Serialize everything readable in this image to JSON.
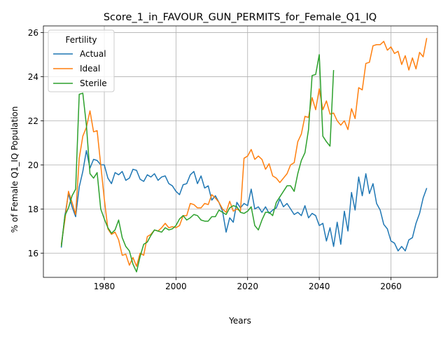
{
  "chart_data": {
    "type": "line",
    "title": "Score_1_in_FAVOUR_GUN_PERMITS_for_Female_Q1_IQ",
    "xlabel": "Years",
    "ylabel": "% of Female Q1_IQ Population",
    "xlim": [
      1963,
      2073
    ],
    "ylim": [
      14.9,
      26.3
    ],
    "xticks": [
      1980,
      2000,
      2020,
      2040,
      2060
    ],
    "yticks": [
      16,
      18,
      20,
      22,
      24,
      26
    ],
    "grid": true,
    "legend": {
      "title": "Fertility",
      "placement": "top-left"
    },
    "series": [
      {
        "name": "Actual",
        "color": "#1f77b4",
        "x": [
          1968,
          1969,
          1970,
          1971,
          1972,
          1973,
          1974,
          1975,
          1976,
          1977,
          1978,
          1979,
          1980,
          1981,
          1982,
          1983,
          1984,
          1985,
          1986,
          1987,
          1988,
          1989,
          1990,
          1991,
          1992,
          1993,
          1994,
          1995,
          1996,
          1997,
          1998,
          1999,
          2000,
          2001,
          2002,
          2003,
          2004,
          2005,
          2006,
          2007,
          2008,
          2009,
          2010,
          2011,
          2012,
          2013,
          2014,
          2015,
          2016,
          2017,
          2018,
          2019,
          2020,
          2021,
          2022,
          2023,
          2024,
          2025,
          2026,
          2027,
          2028,
          2029,
          2030,
          2031,
          2032,
          2033,
          2034,
          2035,
          2036,
          2037,
          2038,
          2039,
          2040,
          2041,
          2042,
          2043,
          2044,
          2045,
          2046,
          2047,
          2048,
          2049,
          2050,
          2051,
          2052,
          2053,
          2054,
          2055,
          2056,
          2057,
          2058,
          2059,
          2060,
          2061,
          2062,
          2063,
          2064,
          2065,
          2066,
          2067,
          2068,
          2069,
          2070
        ],
        "values": [
          16.25,
          17.7,
          18.7,
          18.1,
          17.65,
          19.0,
          19.7,
          20.65,
          19.85,
          20.25,
          20.2,
          20.0,
          20.0,
          19.4,
          19.15,
          19.65,
          19.55,
          19.7,
          19.3,
          19.4,
          19.8,
          19.75,
          19.35,
          19.25,
          19.55,
          19.45,
          19.6,
          19.3,
          19.45,
          19.5,
          19.15,
          19.05,
          18.8,
          18.65,
          19.1,
          19.15,
          19.55,
          19.7,
          19.15,
          19.5,
          18.95,
          19.05,
          18.4,
          18.6,
          18.3,
          17.9,
          16.95,
          17.6,
          17.4,
          18.3,
          18.05,
          18.25,
          18.15,
          18.9,
          18.0,
          18.1,
          17.85,
          18.1,
          17.8,
          17.95,
          18.05,
          18.45,
          18.1,
          18.25,
          18.0,
          17.75,
          17.85,
          17.7,
          18.15,
          17.6,
          17.8,
          17.7,
          17.25,
          17.35,
          16.55,
          17.15,
          16.3,
          17.4,
          16.4,
          17.9,
          17.0,
          18.75,
          17.95,
          19.45,
          18.6,
          19.6,
          18.7,
          19.15,
          18.25,
          17.95,
          17.3,
          17.1,
          16.55,
          16.45,
          16.1,
          16.3,
          16.1,
          16.6,
          16.7,
          17.35,
          17.8,
          18.5,
          18.95
        ]
      },
      {
        "name": "Ideal",
        "color": "#ff7f0e",
        "x": [
          1968,
          1969,
          1970,
          1971,
          1972,
          1973,
          1974,
          1975,
          1976,
          1977,
          1978,
          1979,
          1980,
          1981,
          1982,
          1983,
          1984,
          1985,
          1986,
          1987,
          1988,
          1989,
          1990,
          1991,
          1992,
          1993,
          1994,
          1995,
          1996,
          1997,
          1998,
          1999,
          2000,
          2001,
          2002,
          2003,
          2004,
          2005,
          2006,
          2007,
          2008,
          2009,
          2010,
          2011,
          2012,
          2013,
          2014,
          2015,
          2016,
          2017,
          2018,
          2019,
          2020,
          2021,
          2022,
          2023,
          2024,
          2025,
          2026,
          2027,
          2028,
          2029,
          2030,
          2031,
          2032,
          2033,
          2034,
          2035,
          2036,
          2037,
          2038,
          2039,
          2040,
          2041,
          2042,
          2043,
          2044,
          2045,
          2046,
          2047,
          2048,
          2049,
          2050,
          2051,
          2052,
          2053,
          2054,
          2055,
          2056,
          2057,
          2058,
          2059,
          2060,
          2061,
          2062,
          2063,
          2064,
          2065,
          2066,
          2067,
          2068,
          2069,
          2070
        ],
        "values": [
          16.4,
          17.5,
          18.8,
          18.3,
          17.75,
          20.3,
          21.3,
          21.7,
          22.45,
          21.5,
          21.55,
          20.0,
          18.45,
          17.1,
          16.85,
          16.95,
          16.6,
          15.9,
          15.95,
          15.45,
          15.8,
          15.4,
          16.0,
          15.9,
          16.75,
          16.85,
          17.05,
          17.0,
          17.15,
          17.35,
          17.15,
          17.2,
          17.15,
          17.25,
          17.7,
          17.7,
          18.25,
          18.2,
          18.05,
          18.05,
          18.25,
          18.2,
          18.65,
          18.5,
          18.3,
          18.0,
          17.85,
          18.35,
          17.9,
          18.0,
          17.9,
          20.3,
          20.4,
          20.7,
          20.25,
          20.4,
          20.25,
          19.8,
          20.05,
          19.5,
          19.4,
          19.2,
          19.4,
          19.6,
          20.0,
          20.1,
          21.05,
          21.4,
          22.2,
          22.15,
          23.05,
          22.5,
          23.45,
          22.5,
          22.9,
          22.3,
          22.35,
          22.0,
          21.8,
          22.0,
          21.6,
          22.55,
          22.1,
          23.5,
          23.4,
          24.6,
          24.65,
          25.4,
          25.45,
          25.45,
          25.6,
          25.2,
          25.35,
          25.05,
          25.15,
          24.55,
          24.95,
          24.3,
          24.85,
          24.35,
          25.1,
          24.9,
          25.75
        ]
      },
      {
        "name": "Sterile",
        "color": "#2ca02c",
        "x": [
          1968,
          1969,
          1970,
          1971,
          1972,
          1973,
          1974,
          1975,
          1976,
          1977,
          1978,
          1979,
          1980,
          1981,
          1982,
          1983,
          1984,
          1985,
          1986,
          1987,
          1988,
          1989,
          1990,
          1991,
          1992,
          1993,
          1994,
          1995,
          1996,
          1997,
          1998,
          1999,
          2000,
          2001,
          2002,
          2003,
          2004,
          2005,
          2006,
          2007,
          2008,
          2009,
          2010,
          2011,
          2012,
          2013,
          2014,
          2015,
          2016,
          2017,
          2018,
          2019,
          2020,
          2021,
          2022,
          2023,
          2024,
          2025,
          2026,
          2027,
          2028,
          2029,
          2030,
          2031,
          2032,
          2033,
          2034,
          2035,
          2036,
          2037,
          2038,
          2039,
          2040,
          2041,
          2042,
          2043,
          2044
        ],
        "values": [
          16.3,
          17.7,
          18.05,
          18.6,
          18.9,
          23.2,
          23.25,
          21.8,
          19.6,
          19.4,
          19.65,
          18.0,
          17.55,
          17.15,
          16.9,
          17.05,
          17.5,
          16.7,
          16.3,
          16.1,
          15.5,
          15.15,
          15.85,
          16.4,
          16.5,
          16.8,
          17.05,
          17.0,
          16.95,
          17.15,
          17.05,
          17.1,
          17.25,
          17.55,
          17.7,
          17.5,
          17.6,
          17.75,
          17.7,
          17.5,
          17.45,
          17.45,
          17.65,
          17.65,
          17.95,
          17.85,
          17.75,
          18.05,
          18.15,
          18.1,
          17.85,
          17.8,
          17.9,
          18.1,
          17.25,
          17.05,
          17.5,
          17.85,
          17.85,
          17.7,
          18.3,
          18.55,
          18.8,
          19.05,
          19.05,
          18.8,
          19.6,
          20.2,
          20.55,
          21.6,
          24.05,
          24.1,
          25.0,
          21.3,
          21.05,
          20.85,
          24.3
        ]
      }
    ]
  }
}
